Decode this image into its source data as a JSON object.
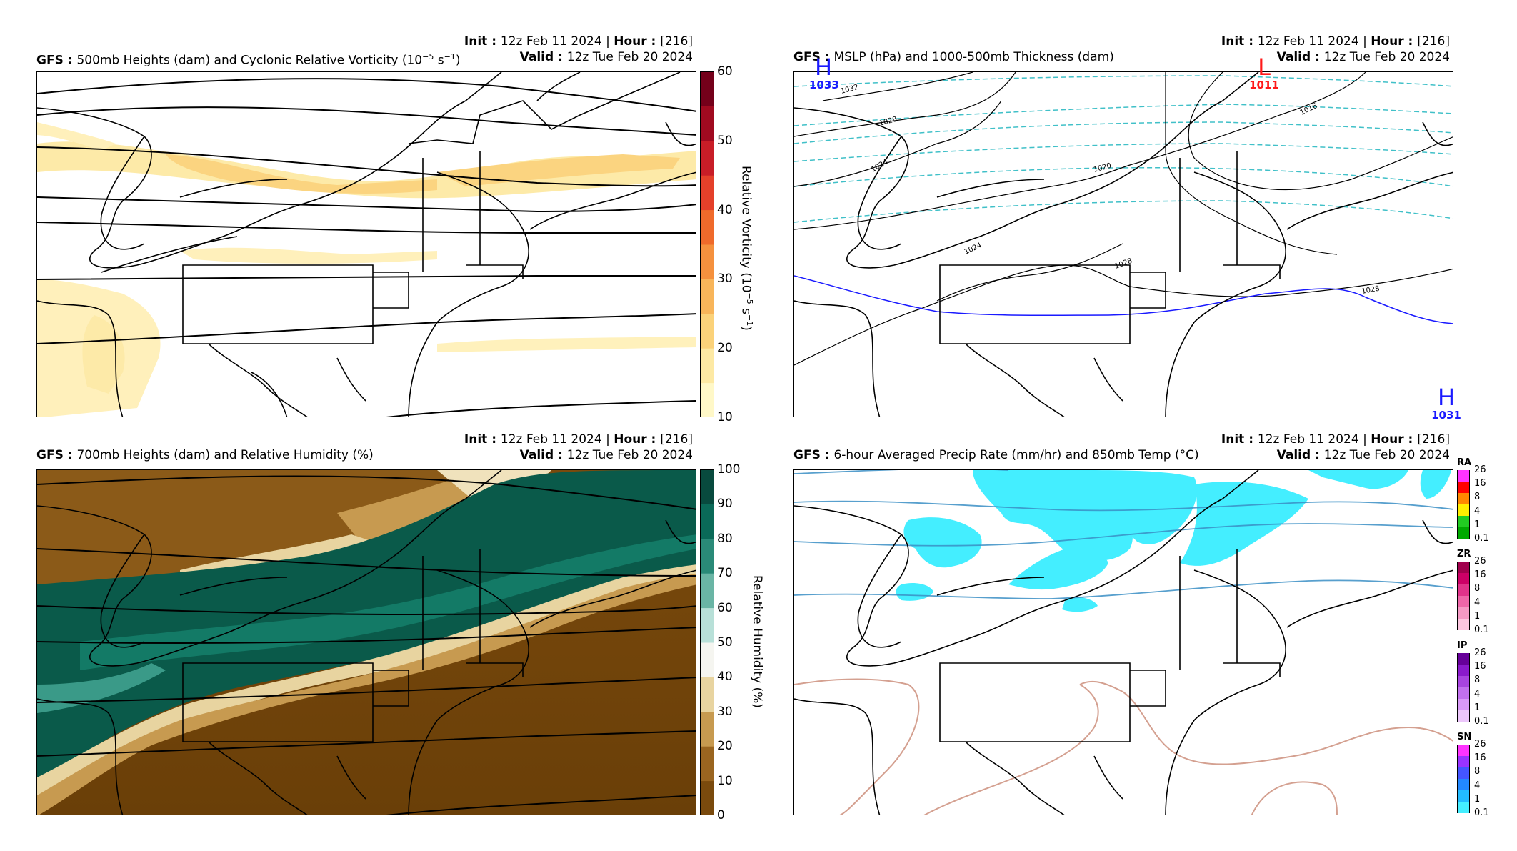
{
  "panels": {
    "p1": {
      "init_label": "Init",
      "init_value": "12z Feb 11 2024",
      "hour_label": "Hour",
      "hour_value": "[216]",
      "model": "GFS",
      "title": "500mb Heights (dam) and Cyclonic Relative Vorticity (10",
      "title_sup": "−5",
      "title_unit": " s",
      "title_unit_sup": "−1",
      "title_end": ")",
      "valid_label": "Valid",
      "valid_value": "12z Tue Feb 20 2024",
      "colorbar_title": "Relative Vorticity (10",
      "colorbar_title_sup": "−5",
      "colorbar_title_mid": " s",
      "colorbar_title_sup2": "−1",
      "colorbar_title_end": ")",
      "colorbar_ticks": [
        "10",
        "20",
        "30",
        "40",
        "50",
        "60"
      ]
    },
    "p2": {
      "init_label": "Init",
      "init_value": "12z Feb 11 2024",
      "hour_label": "Hour",
      "hour_value": "[216]",
      "model": "GFS",
      "title": "MSLP (hPa) and 1000-500mb Thickness (dam)",
      "valid_label": "Valid",
      "valid_value": "12z Tue Feb 20 2024",
      "highs_lows": [
        {
          "letter": "H",
          "value": "1033",
          "color": "#1a1aff"
        },
        {
          "letter": "L",
          "value": "1011",
          "color": "#ff1a1a"
        },
        {
          "letter": "H",
          "value": "1031",
          "color": "#1a1aff"
        }
      ],
      "isobar_labels": [
        "1032",
        "1028",
        "1024",
        "1020",
        "1016",
        "1024",
        "1028",
        "1028"
      ]
    },
    "p3": {
      "init_label": "Init",
      "init_value": "12z Feb 11 2024",
      "hour_label": "Hour",
      "hour_value": "[216]",
      "model": "GFS",
      "title": "700mb Heights (dam) and Relative Humidity (%)",
      "valid_label": "Valid",
      "valid_value": "12z Tue Feb 20 2024",
      "colorbar_title": "Relative Humidity (%)",
      "colorbar_ticks": [
        "0",
        "10",
        "20",
        "30",
        "40",
        "50",
        "60",
        "70",
        "80",
        "90",
        "100"
      ]
    },
    "p4": {
      "init_label": "Init",
      "init_value": "12z Feb 11 2024",
      "hour_label": "Hour",
      "hour_value": "[216]",
      "model": "GFS",
      "title": "6-hour Averaged Precip Rate (mm/hr) and 850mb Temp (°C)",
      "valid_label": "Valid",
      "valid_value": "12z Tue Feb 20 2024",
      "ptypes": [
        {
          "label": "RA",
          "ticks": [
            "26",
            "16",
            "8",
            "4",
            "1",
            "0.1"
          ],
          "colors": [
            "#ff33ff",
            "#ff0000",
            "#ff8800",
            "#ffee00",
            "#22cc22",
            "#00aa00"
          ]
        },
        {
          "label": "ZR",
          "ticks": [
            "26",
            "16",
            "8",
            "4",
            "1",
            "0.1"
          ],
          "colors": [
            "#a0004d",
            "#cc0066",
            "#e0338a",
            "#ee66a8",
            "#f599c4",
            "#fcc6df"
          ]
        },
        {
          "label": "IP",
          "ticks": [
            "26",
            "16",
            "8",
            "4",
            "1",
            "0.1"
          ],
          "colors": [
            "#660099",
            "#8a1acc",
            "#a844e0",
            "#c270ee",
            "#d899f7",
            "#ecc6fb"
          ]
        },
        {
          "label": "SN",
          "ticks": [
            "26",
            "16",
            "8",
            "4",
            "1",
            "0.1"
          ],
          "colors": [
            "#ff33ff",
            "#9933ff",
            "#4455ff",
            "#2288ff",
            "#22bbff",
            "#44eeff"
          ]
        }
      ]
    }
  },
  "colors": {
    "vorticity": [
      "#fff8c8",
      "#fde9a4",
      "#fbd27a",
      "#f8b55a",
      "#f5913e",
      "#ef6a2b",
      "#e4402a",
      "#c81d27",
      "#a00a20",
      "#74001a"
    ],
    "rh_dry": "#7a4a0d",
    "rh_wet": "#0a5a4a",
    "precip_snow": "#44eeff",
    "temp_line": "#3a8fc5",
    "temp_warm_line": "#d4a090",
    "thickness_line": "#40c0c8",
    "isobar_1028": "#1a1aff"
  }
}
